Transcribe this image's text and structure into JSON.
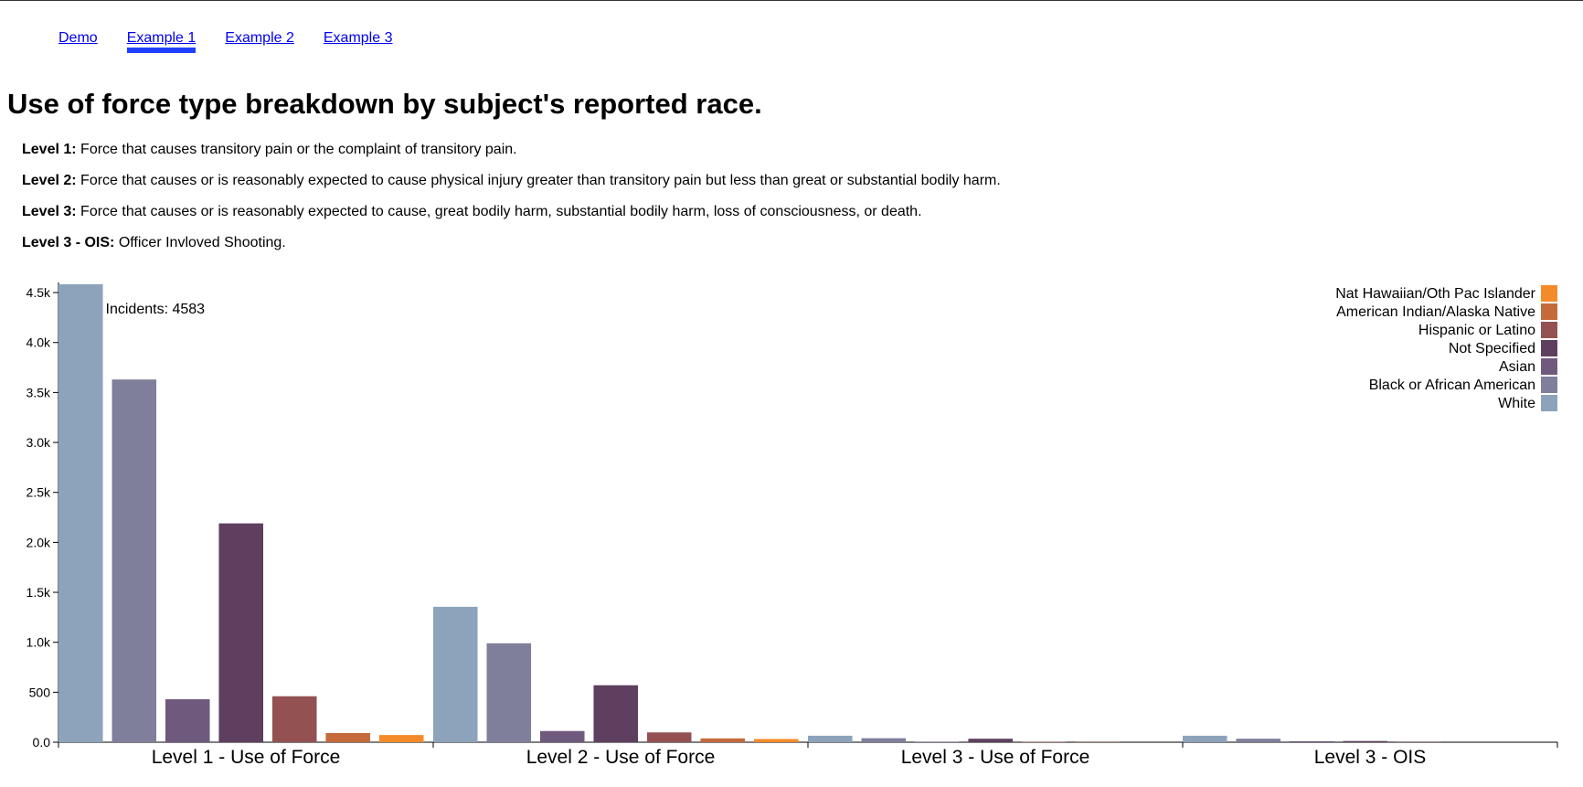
{
  "nav": {
    "links": [
      "Demo",
      "Example 1",
      "Example 2",
      "Example 3"
    ],
    "active": "Example 1"
  },
  "page_title": "Use of force type breakdown by subject's reported race.",
  "definitions": [
    {
      "term": "Level 1:",
      "text": " Force that causes transitory pain or the complaint of transitory pain."
    },
    {
      "term": "Level 2:",
      "text": " Force that causes or is reasonably expected to cause physical injury greater than transitory pain but less than great or substantial bodily harm."
    },
    {
      "term": "Level 3:",
      "text": " Force that causes or is reasonably expected to cause, great bodily harm, substantial bodily harm, loss of consciousness, or death."
    },
    {
      "term": "Level 3 - OIS:",
      "text": " Officer Invloved Shooting."
    }
  ],
  "chart_data": {
    "type": "bar",
    "categories": [
      "Level 1 - Use of Force",
      "Level 2 - Use of Force",
      "Level 3 - Use of Force",
      "Level 3 - OIS"
    ],
    "series": [
      {
        "name": "White",
        "color": "#8da3bb",
        "values": [
          4583,
          1355,
          65,
          65
        ]
      },
      {
        "name": "Black or African American",
        "color": "#7f7f9b",
        "values": [
          3630,
          990,
          40,
          35
        ]
      },
      {
        "name": "Asian",
        "color": "#6f5a7e",
        "values": [
          430,
          112,
          5,
          10
        ]
      },
      {
        "name": "Not Specified",
        "color": "#5e3f5f",
        "values": [
          2190,
          570,
          35,
          12
        ]
      },
      {
        "name": "Hispanic or Latino",
        "color": "#935151",
        "values": [
          460,
          98,
          5,
          2
        ]
      },
      {
        "name": "American Indian/Alaska Native",
        "color": "#c46a3b",
        "values": [
          92,
          38,
          2,
          0
        ]
      },
      {
        "name": "Nat Hawaiian/Oth Pac Islander",
        "color": "#f58a2a",
        "values": [
          72,
          32,
          0,
          0
        ]
      }
    ],
    "legend_order": [
      "Nat Hawaiian/Oth Pac Islander",
      "American Indian/Alaska Native",
      "Hispanic or Latino",
      "Not Specified",
      "Asian",
      "Black or African American",
      "White"
    ],
    "y_ticks": [
      0,
      500,
      1000,
      1500,
      2000,
      2500,
      3000,
      3500,
      4000,
      4500
    ],
    "y_tick_labels": [
      "0.0",
      "500",
      "1.0k",
      "1.5k",
      "2.0k",
      "2.5k",
      "3.0k",
      "3.5k",
      "4.0k",
      "4.5k"
    ],
    "ylim": [
      0,
      4583
    ],
    "tooltip": "Incidents: 4583",
    "legend_position": "top-right"
  }
}
